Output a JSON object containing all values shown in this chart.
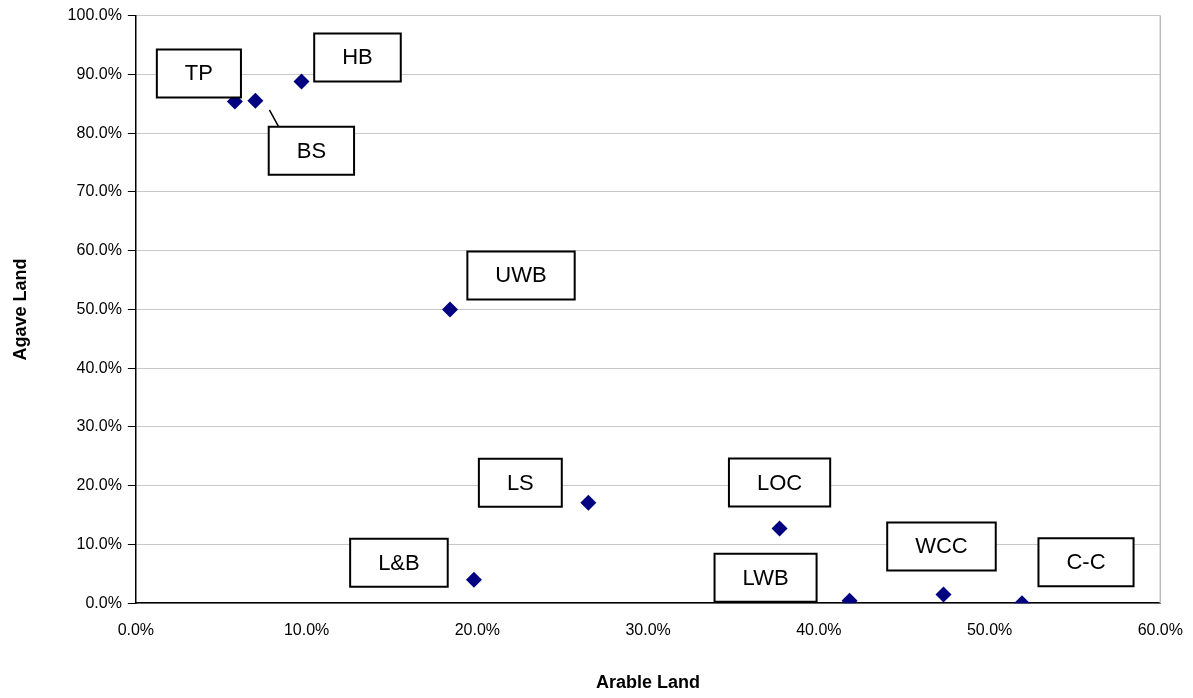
{
  "chart_data": {
    "type": "scatter",
    "xlabel": "Arable Land",
    "ylabel": "Agave Land",
    "x": [
      5.8,
      7.0,
      9.7,
      18.4,
      19.8,
      26.5,
      37.7,
      41.8,
      47.3,
      51.9
    ],
    "series": [
      {
        "color": "#000080",
        "values": [
          85.4,
          85.5,
          88.8,
          50.0,
          4.0,
          17.1,
          12.7,
          0.4,
          1.5,
          0.0
        ]
      }
    ],
    "xlim": [
      0,
      60
    ],
    "ylim": [
      0,
      100
    ],
    "xticks": [
      {
        "value": 0,
        "label": "0.0%"
      },
      {
        "value": 10,
        "label": "10.0%"
      },
      {
        "value": 20,
        "label": "20.0%"
      },
      {
        "value": 30,
        "label": "30.0%"
      },
      {
        "value": 40,
        "label": "40.0%"
      },
      {
        "value": 50,
        "label": "50.0%"
      },
      {
        "value": 60,
        "label": "60.0%"
      }
    ],
    "yticks": [
      {
        "value": 0,
        "label": "0.0%"
      },
      {
        "value": 10,
        "label": "10.0%"
      },
      {
        "value": 20,
        "label": "20.0%"
      },
      {
        "value": 30,
        "label": "30.0%"
      },
      {
        "value": 40,
        "label": "40.0%"
      },
      {
        "value": 50,
        "label": "50.0%"
      },
      {
        "value": 60,
        "label": "60.0%"
      },
      {
        "value": 70,
        "label": "70.0%"
      },
      {
        "value": 80,
        "label": "80.0%"
      },
      {
        "value": 90,
        "label": "90.0%"
      },
      {
        "value": 100,
        "label": "100.0%"
      }
    ],
    "grid": "y",
    "legend": false,
    "marker": "diamond",
    "annotations": [
      {
        "text": "TP",
        "x": 5.8,
        "y": 85.4
      },
      {
        "text": "BS",
        "x": 7.0,
        "y": 85.5
      },
      {
        "text": "HB",
        "x": 9.7,
        "y": 88.8
      },
      {
        "text": "UWB",
        "x": 18.4,
        "y": 50.0
      },
      {
        "text": "L&B",
        "x": 19.8,
        "y": 4.0
      },
      {
        "text": "LS",
        "x": 26.5,
        "y": 17.1
      },
      {
        "text": "LOC",
        "x": 37.7,
        "y": 12.7
      },
      {
        "text": "LWB",
        "x": 41.8,
        "y": 0.4
      },
      {
        "text": "WCC",
        "x": 47.3,
        "y": 1.5
      },
      {
        "text": "C-C",
        "x": 51.9,
        "y": 0.0
      }
    ]
  }
}
